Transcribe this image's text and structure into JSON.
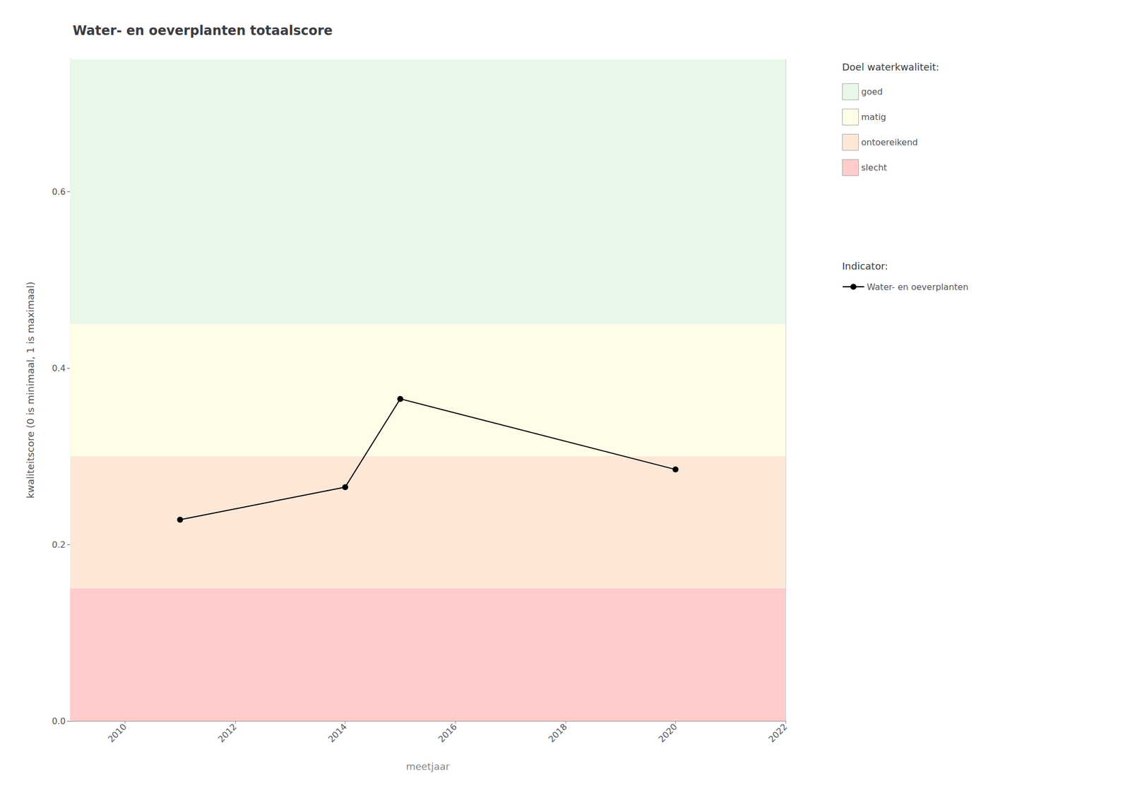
{
  "chart_data": {
    "type": "line",
    "title": "Water- en oeverplanten totaalscore",
    "xlabel": "meetjaar",
    "ylabel": "kwaliteitscore (0 is minimaal, 1 is maximaal)",
    "x": [
      2011,
      2014,
      2015,
      2020
    ],
    "series": [
      {
        "name": "Water- en oeverplanten",
        "color": "#000000",
        "marker": "circle",
        "line_style": "solid",
        "values": [
          0.228,
          0.265,
          0.365,
          0.285
        ]
      }
    ],
    "series_legend_title": "Indicator:",
    "xlim": [
      2009,
      2022
    ],
    "ylim": [
      0.0,
      0.75
    ],
    "xticks": [
      2010,
      2012,
      2014,
      2016,
      2018,
      2020,
      2022
    ],
    "yticks": [
      {
        "value": 0.0,
        "label": "0.0"
      },
      0.2,
      0.4,
      0.6
    ],
    "grid": true,
    "bands_legend_title": "Doel waterkwaliteit:",
    "bands": [
      {
        "name": "goed",
        "ymin": 0.45,
        "ymax": 0.75,
        "color": "#e8f8e8"
      },
      {
        "name": "matig",
        "ymin": 0.3,
        "ymax": 0.45,
        "color": "#fdfde8"
      },
      {
        "name": "ontoereikend",
        "ymin": 0.15,
        "ymax": 0.3,
        "color": "#fde8d8"
      },
      {
        "name": "slecht",
        "ymin": 0.0,
        "ymax": 0.15,
        "color": "#ffcccc"
      }
    ]
  }
}
